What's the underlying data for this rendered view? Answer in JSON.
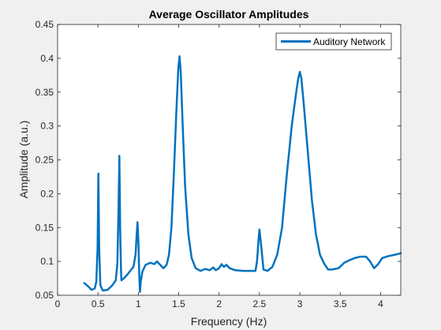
{
  "chart_data": {
    "type": "line",
    "title": "Average Oscillator Amplitudes",
    "xlabel": "Frequency (Hz)",
    "ylabel": "Amplitude (a.u.)",
    "xlim": [
      0,
      4.25
    ],
    "ylim": [
      0.05,
      0.45
    ],
    "xticks": [
      0,
      0.5,
      1,
      1.5,
      2,
      2.5,
      3,
      3.5,
      4
    ],
    "xtick_labels": [
      "0",
      "0.5",
      "1",
      "1.5",
      "2",
      "2.5",
      "3",
      "3.5",
      "4"
    ],
    "yticks": [
      0.05,
      0.1,
      0.15,
      0.2,
      0.25,
      0.3,
      0.35,
      0.4,
      0.45
    ],
    "ytick_labels": [
      "0.05",
      "0.1",
      "0.15",
      "0.2",
      "0.25",
      "0.3",
      "0.35",
      "0.4",
      "0.45"
    ],
    "grid": false,
    "legend_position": "top-right",
    "series": [
      {
        "name": "Auditory Network",
        "color": "#0072bd",
        "points": [
          [
            0.33,
            0.068
          ],
          [
            0.38,
            0.063
          ],
          [
            0.42,
            0.058
          ],
          [
            0.46,
            0.06
          ],
          [
            0.48,
            0.07
          ],
          [
            0.495,
            0.12
          ],
          [
            0.505,
            0.23
          ],
          [
            0.515,
            0.12
          ],
          [
            0.53,
            0.065
          ],
          [
            0.56,
            0.057
          ],
          [
            0.62,
            0.058
          ],
          [
            0.68,
            0.065
          ],
          [
            0.72,
            0.072
          ],
          [
            0.74,
            0.095
          ],
          [
            0.755,
            0.18
          ],
          [
            0.765,
            0.256
          ],
          [
            0.775,
            0.15
          ],
          [
            0.785,
            0.09
          ],
          [
            0.79,
            0.072
          ],
          [
            0.82,
            0.075
          ],
          [
            0.86,
            0.08
          ],
          [
            0.9,
            0.086
          ],
          [
            0.94,
            0.092
          ],
          [
            0.965,
            0.11
          ],
          [
            0.98,
            0.14
          ],
          [
            0.99,
            0.158
          ],
          [
            1.0,
            0.13
          ],
          [
            1.01,
            0.085
          ],
          [
            1.02,
            0.055
          ],
          [
            1.03,
            0.07
          ],
          [
            1.05,
            0.085
          ],
          [
            1.09,
            0.095
          ],
          [
            1.15,
            0.098
          ],
          [
            1.2,
            0.096
          ],
          [
            1.23,
            0.1
          ],
          [
            1.27,
            0.095
          ],
          [
            1.31,
            0.09
          ],
          [
            1.35,
            0.095
          ],
          [
            1.38,
            0.11
          ],
          [
            1.41,
            0.15
          ],
          [
            1.44,
            0.23
          ],
          [
            1.47,
            0.32
          ],
          [
            1.495,
            0.385
          ],
          [
            1.51,
            0.403
          ],
          [
            1.525,
            0.38
          ],
          [
            1.55,
            0.3
          ],
          [
            1.58,
            0.21
          ],
          [
            1.62,
            0.14
          ],
          [
            1.66,
            0.105
          ],
          [
            1.71,
            0.09
          ],
          [
            1.77,
            0.086
          ],
          [
            1.83,
            0.089
          ],
          [
            1.88,
            0.087
          ],
          [
            1.93,
            0.091
          ],
          [
            1.96,
            0.087
          ],
          [
            2.0,
            0.09
          ],
          [
            2.03,
            0.096
          ],
          [
            2.06,
            0.092
          ],
          [
            2.09,
            0.095
          ],
          [
            2.13,
            0.09
          ],
          [
            2.2,
            0.087
          ],
          [
            2.3,
            0.086
          ],
          [
            2.4,
            0.086
          ],
          [
            2.45,
            0.086
          ],
          [
            2.47,
            0.1
          ],
          [
            2.49,
            0.135
          ],
          [
            2.5,
            0.147
          ],
          [
            2.52,
            0.125
          ],
          [
            2.55,
            0.088
          ],
          [
            2.6,
            0.086
          ],
          [
            2.66,
            0.092
          ],
          [
            2.72,
            0.11
          ],
          [
            2.78,
            0.15
          ],
          [
            2.84,
            0.23
          ],
          [
            2.9,
            0.3
          ],
          [
            2.95,
            0.345
          ],
          [
            2.98,
            0.37
          ],
          [
            3.0,
            0.38
          ],
          [
            3.02,
            0.37
          ],
          [
            3.05,
            0.33
          ],
          [
            3.1,
            0.26
          ],
          [
            3.15,
            0.19
          ],
          [
            3.2,
            0.14
          ],
          [
            3.25,
            0.11
          ],
          [
            3.3,
            0.097
          ],
          [
            3.35,
            0.088
          ],
          [
            3.4,
            0.088
          ],
          [
            3.48,
            0.09
          ],
          [
            3.55,
            0.098
          ],
          [
            3.62,
            0.102
          ],
          [
            3.68,
            0.105
          ],
          [
            3.75,
            0.107
          ],
          [
            3.82,
            0.107
          ],
          [
            3.87,
            0.1
          ],
          [
            3.92,
            0.09
          ],
          [
            3.97,
            0.096
          ],
          [
            4.02,
            0.105
          ],
          [
            4.1,
            0.108
          ],
          [
            4.18,
            0.11
          ],
          [
            4.25,
            0.112
          ]
        ]
      }
    ]
  }
}
